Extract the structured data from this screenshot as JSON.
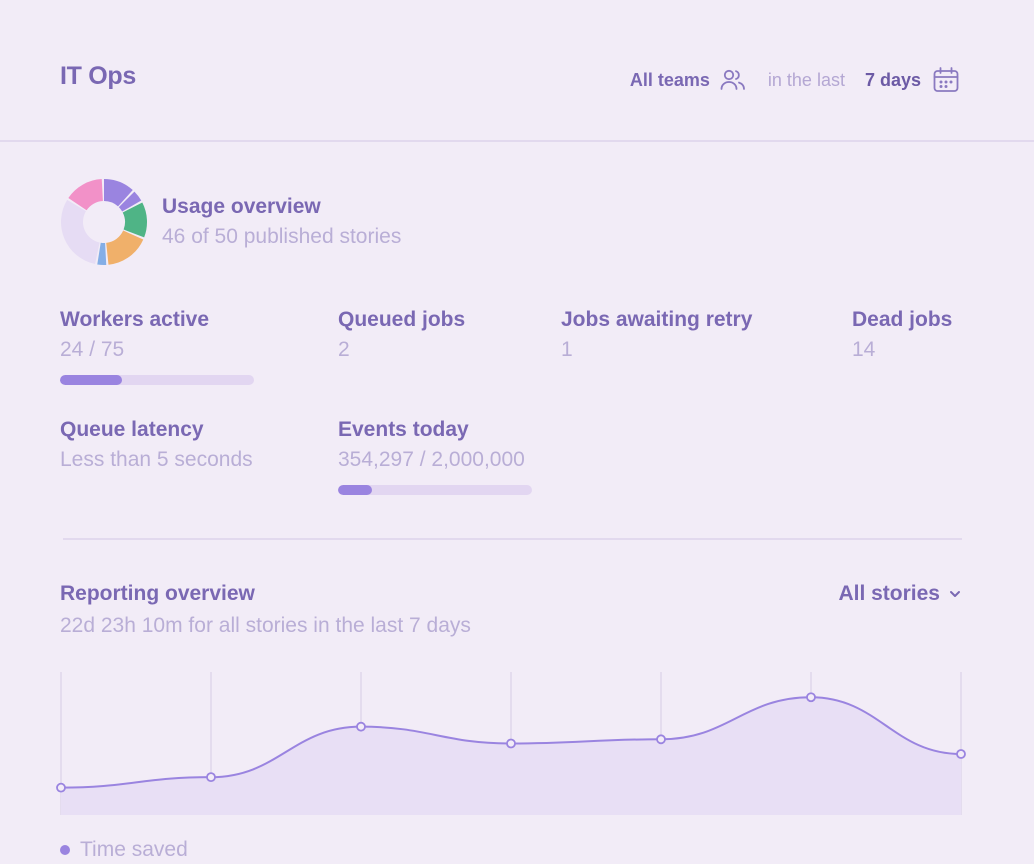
{
  "header": {
    "title": "IT Ops",
    "teams_label": "All teams",
    "teams_icon": "users-icon",
    "in_the_last": "in the last",
    "days_label": "7 days",
    "days_icon": "calendar-icon"
  },
  "usage": {
    "title": "Usage overview",
    "subtitle": "46 of 50 published stories",
    "donut_colors": [
      "#9a84e0",
      "#9a84e0",
      "#4fb486",
      "#f0b06a",
      "#84aee6",
      "#e6dcf4",
      "#f291c8"
    ]
  },
  "stats": [
    {
      "label": "Workers active",
      "value": "24 / 75",
      "progress": 0.32
    },
    {
      "label": "Queued jobs",
      "value": "2"
    },
    {
      "label": "Jobs awaiting retry",
      "value": "1"
    },
    {
      "label": "Dead jobs",
      "value": "14"
    },
    {
      "label": "Queue latency",
      "value": "Less than 5 seconds"
    },
    {
      "label": "Events today",
      "value": "354,297 / 2,000,000",
      "progress": 0.177
    }
  ],
  "reporting": {
    "title": "Reporting overview",
    "subtitle": "22d 23h 10m for all stories in the last 7 days",
    "filter_label": "All stories",
    "filter_icon": "chevron-down-icon"
  },
  "chart_data": {
    "type": "area",
    "series": [
      {
        "name": "Time saved",
        "values": [
          1.3,
          1.8,
          4.2,
          3.4,
          3.6,
          5.6,
          2.9
        ]
      }
    ],
    "ylim": [
      0,
      6.8
    ],
    "grid": "vertical",
    "line_color": "#9a84e0",
    "fill_color": "#e8dff5"
  }
}
